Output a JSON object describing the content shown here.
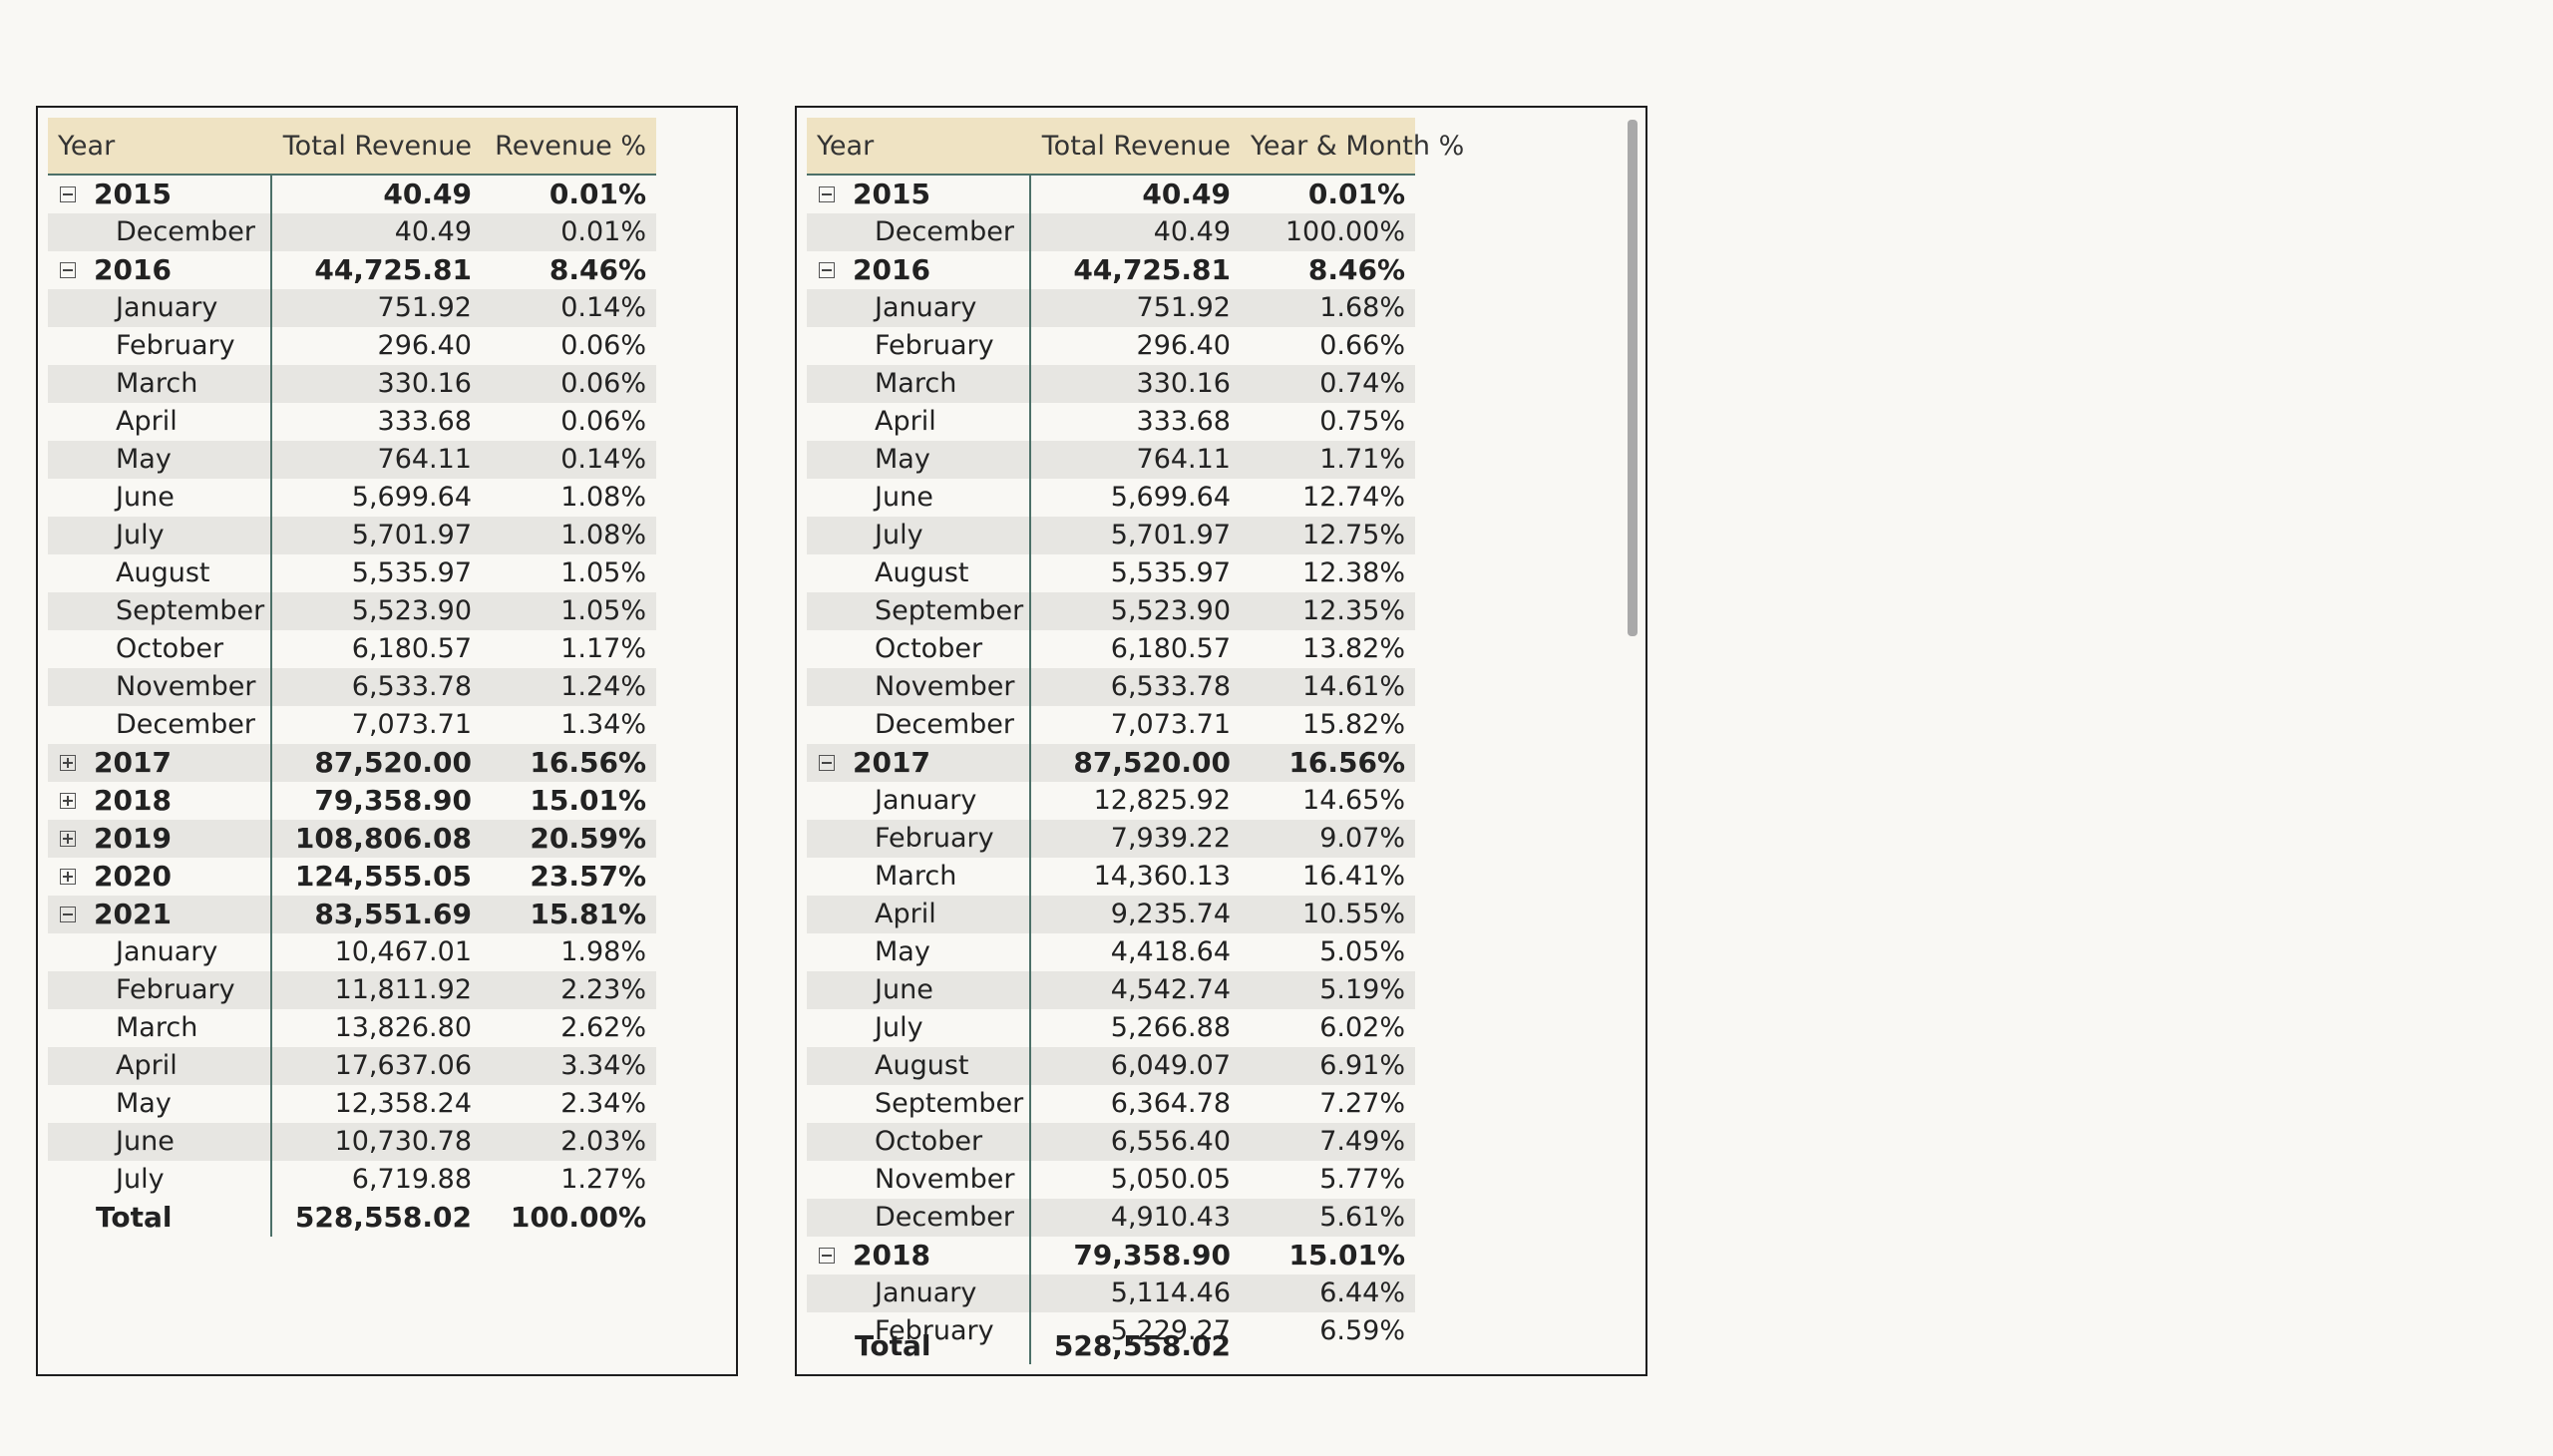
{
  "left_matrix": {
    "headers": [
      "Year",
      "Total Revenue",
      "Revenue %"
    ],
    "rows": [
      {
        "type": "year",
        "expanded": true,
        "label": "2015",
        "revenue": "40.49",
        "pct": "0.01%"
      },
      {
        "type": "month",
        "label": "December",
        "revenue": "40.49",
        "pct": "0.01%"
      },
      {
        "type": "year",
        "expanded": true,
        "label": "2016",
        "revenue": "44,725.81",
        "pct": "8.46%"
      },
      {
        "type": "month",
        "label": "January",
        "revenue": "751.92",
        "pct": "0.14%"
      },
      {
        "type": "month",
        "label": "February",
        "revenue": "296.40",
        "pct": "0.06%"
      },
      {
        "type": "month",
        "label": "March",
        "revenue": "330.16",
        "pct": "0.06%"
      },
      {
        "type": "month",
        "label": "April",
        "revenue": "333.68",
        "pct": "0.06%"
      },
      {
        "type": "month",
        "label": "May",
        "revenue": "764.11",
        "pct": "0.14%"
      },
      {
        "type": "month",
        "label": "June",
        "revenue": "5,699.64",
        "pct": "1.08%"
      },
      {
        "type": "month",
        "label": "July",
        "revenue": "5,701.97",
        "pct": "1.08%"
      },
      {
        "type": "month",
        "label": "August",
        "revenue": "5,535.97",
        "pct": "1.05%"
      },
      {
        "type": "month",
        "label": "September",
        "revenue": "5,523.90",
        "pct": "1.05%"
      },
      {
        "type": "month",
        "label": "October",
        "revenue": "6,180.57",
        "pct": "1.17%"
      },
      {
        "type": "month",
        "label": "November",
        "revenue": "6,533.78",
        "pct": "1.24%"
      },
      {
        "type": "month",
        "label": "December",
        "revenue": "7,073.71",
        "pct": "1.34%"
      },
      {
        "type": "year",
        "expanded": false,
        "label": "2017",
        "revenue": "87,520.00",
        "pct": "16.56%"
      },
      {
        "type": "year",
        "expanded": false,
        "label": "2018",
        "revenue": "79,358.90",
        "pct": "15.01%"
      },
      {
        "type": "year",
        "expanded": false,
        "label": "2019",
        "revenue": "108,806.08",
        "pct": "20.59%"
      },
      {
        "type": "year",
        "expanded": false,
        "label": "2020",
        "revenue": "124,555.05",
        "pct": "23.57%"
      },
      {
        "type": "year",
        "expanded": true,
        "label": "2021",
        "revenue": "83,551.69",
        "pct": "15.81%"
      },
      {
        "type": "month",
        "label": "January",
        "revenue": "10,467.01",
        "pct": "1.98%"
      },
      {
        "type": "month",
        "label": "February",
        "revenue": "11,811.92",
        "pct": "2.23%"
      },
      {
        "type": "month",
        "label": "March",
        "revenue": "13,826.80",
        "pct": "2.62%"
      },
      {
        "type": "month",
        "label": "April",
        "revenue": "17,637.06",
        "pct": "3.34%"
      },
      {
        "type": "month",
        "label": "May",
        "revenue": "12,358.24",
        "pct": "2.34%"
      },
      {
        "type": "month",
        "label": "June",
        "revenue": "10,730.78",
        "pct": "2.03%"
      },
      {
        "type": "month",
        "label": "July",
        "revenue": "6,719.88",
        "pct": "1.27%"
      },
      {
        "type": "total",
        "label": "Total",
        "revenue": "528,558.02",
        "pct": "100.00%"
      }
    ]
  },
  "right_matrix": {
    "headers": [
      "Year",
      "Total Revenue",
      "Year & Month %"
    ],
    "rows": [
      {
        "type": "year",
        "expanded": true,
        "label": "2015",
        "revenue": "40.49",
        "pct": "0.01%"
      },
      {
        "type": "month",
        "label": "December",
        "revenue": "40.49",
        "pct": "100.00%"
      },
      {
        "type": "year",
        "expanded": true,
        "label": "2016",
        "revenue": "44,725.81",
        "pct": "8.46%"
      },
      {
        "type": "month",
        "label": "January",
        "revenue": "751.92",
        "pct": "1.68%"
      },
      {
        "type": "month",
        "label": "February",
        "revenue": "296.40",
        "pct": "0.66%"
      },
      {
        "type": "month",
        "label": "March",
        "revenue": "330.16",
        "pct": "0.74%"
      },
      {
        "type": "month",
        "label": "April",
        "revenue": "333.68",
        "pct": "0.75%"
      },
      {
        "type": "month",
        "label": "May",
        "revenue": "764.11",
        "pct": "1.71%"
      },
      {
        "type": "month",
        "label": "June",
        "revenue": "5,699.64",
        "pct": "12.74%"
      },
      {
        "type": "month",
        "label": "July",
        "revenue": "5,701.97",
        "pct": "12.75%"
      },
      {
        "type": "month",
        "label": "August",
        "revenue": "5,535.97",
        "pct": "12.38%"
      },
      {
        "type": "month",
        "label": "September",
        "revenue": "5,523.90",
        "pct": "12.35%"
      },
      {
        "type": "month",
        "label": "October",
        "revenue": "6,180.57",
        "pct": "13.82%"
      },
      {
        "type": "month",
        "label": "November",
        "revenue": "6,533.78",
        "pct": "14.61%"
      },
      {
        "type": "month",
        "label": "December",
        "revenue": "7,073.71",
        "pct": "15.82%"
      },
      {
        "type": "year",
        "expanded": true,
        "label": "2017",
        "revenue": "87,520.00",
        "pct": "16.56%"
      },
      {
        "type": "month",
        "label": "January",
        "revenue": "12,825.92",
        "pct": "14.65%"
      },
      {
        "type": "month",
        "label": "February",
        "revenue": "7,939.22",
        "pct": "9.07%"
      },
      {
        "type": "month",
        "label": "March",
        "revenue": "14,360.13",
        "pct": "16.41%"
      },
      {
        "type": "month",
        "label": "April",
        "revenue": "9,235.74",
        "pct": "10.55%"
      },
      {
        "type": "month",
        "label": "May",
        "revenue": "4,418.64",
        "pct": "5.05%"
      },
      {
        "type": "month",
        "label": "June",
        "revenue": "4,542.74",
        "pct": "5.19%"
      },
      {
        "type": "month",
        "label": "July",
        "revenue": "5,266.88",
        "pct": "6.02%"
      },
      {
        "type": "month",
        "label": "August",
        "revenue": "6,049.07",
        "pct": "6.91%"
      },
      {
        "type": "month",
        "label": "September",
        "revenue": "6,364.78",
        "pct": "7.27%"
      },
      {
        "type": "month",
        "label": "October",
        "revenue": "6,556.40",
        "pct": "7.49%"
      },
      {
        "type": "month",
        "label": "November",
        "revenue": "5,050.05",
        "pct": "5.77%"
      },
      {
        "type": "month",
        "label": "December",
        "revenue": "4,910.43",
        "pct": "5.61%"
      },
      {
        "type": "year",
        "expanded": true,
        "label": "2018",
        "revenue": "79,358.90",
        "pct": "15.01%"
      },
      {
        "type": "month",
        "label": "January",
        "revenue": "5,114.46",
        "pct": "6.44%"
      },
      {
        "type": "month",
        "label": "February",
        "revenue": "5,229.27",
        "pct": "6.59%"
      }
    ],
    "total": {
      "label": "Total",
      "revenue": "528,558.02",
      "pct": ""
    }
  }
}
